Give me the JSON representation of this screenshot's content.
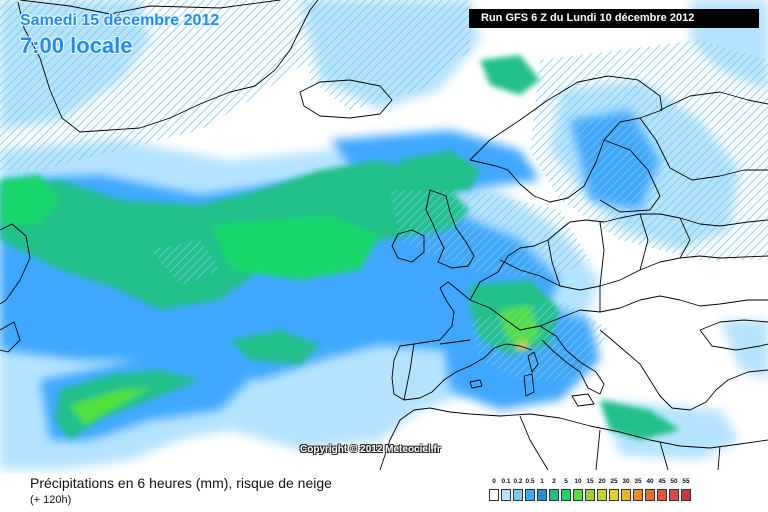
{
  "header": {
    "date_title": "Samedi 15 décembre 2012",
    "time_title": "7:00 locale",
    "run_info": "Run GFS 6 Z du Lundi 10 décembre 2012"
  },
  "map": {
    "copyright": "Copyright © 2012 Meteociel.fr",
    "background_color": "#ffffff",
    "land_outline_color": "#000000"
  },
  "footer": {
    "title": "Précipitations en 6 heures (mm), risque de neige",
    "subtitle": "(+ 120h)"
  },
  "legend": {
    "labels": [
      "0",
      "0.1",
      "0.2",
      "0.5",
      "1",
      "2",
      "5",
      "10",
      "15",
      "20",
      "25",
      "30",
      "35",
      "40",
      "45",
      "50",
      "55"
    ],
    "colors": [
      "#ffffff",
      "#b5e3ff",
      "#7fcbff",
      "#3fa7ff",
      "#1f8fd9",
      "#22c08a",
      "#18d66a",
      "#52e03a",
      "#9ad22b",
      "#c7d42c",
      "#e6cf2c",
      "#f0b12a",
      "#f08c2a",
      "#e96a2f",
      "#e3583d",
      "#d84a4a",
      "#c63a3a"
    ]
  }
}
